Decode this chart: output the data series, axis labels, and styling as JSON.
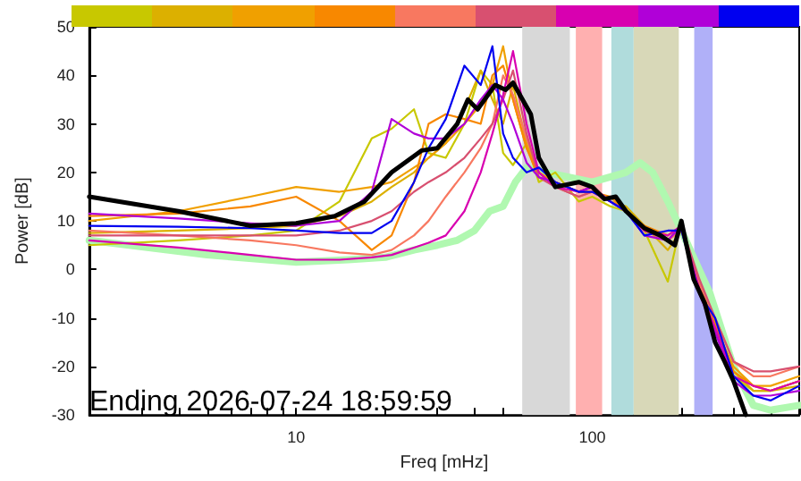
{
  "chart_data": {
    "type": "line",
    "xlabel": "Freq [mHz]",
    "ylabel": "Power [dB]",
    "log": "x",
    "grid": false,
    "marker": "none",
    "line_style": "solid",
    "xlim": [
      2,
      500
    ],
    "ylim": [
      -30,
      50
    ],
    "xticks": [
      {
        "value": 2,
        "label": null
      },
      {
        "value": 3,
        "label": null
      },
      {
        "value": 4,
        "label": null
      },
      {
        "value": 5,
        "label": null
      },
      {
        "value": 6,
        "label": null
      },
      {
        "value": 7,
        "label": null
      },
      {
        "value": 8,
        "label": null
      },
      {
        "value": 9,
        "label": null
      },
      10,
      {
        "value": 20,
        "label": null
      },
      {
        "value": 30,
        "label": null
      },
      {
        "value": 40,
        "label": null
      },
      {
        "value": 50,
        "label": null
      },
      {
        "value": 60,
        "label": null
      },
      {
        "value": 70,
        "label": null
      },
      {
        "value": 80,
        "label": null
      },
      {
        "value": 90,
        "label": null
      },
      100,
      {
        "value": 200,
        "label": null
      },
      {
        "value": 300,
        "label": null
      },
      {
        "value": 400,
        "label": null
      },
      {
        "value": 500,
        "label": null
      }
    ],
    "yticks": [
      -30,
      -20,
      -10,
      0,
      10,
      20,
      30,
      40,
      50
    ],
    "annotations": [
      "Ending 2026-07-24 18:59:59"
    ],
    "bands": [
      {
        "axis": "x",
        "from": 58,
        "to": 84,
        "color": "#d8d8d8"
      },
      {
        "axis": "x",
        "from": 88,
        "to": 108,
        "color": "#ffb0b0"
      },
      {
        "axis": "x",
        "from": 116,
        "to": 138,
        "color": "#b0dcdc"
      },
      {
        "axis": "x",
        "from": 138,
        "to": 196,
        "color": "#d8d8b8"
      },
      {
        "axis": "x",
        "from": 221,
        "to": 255,
        "color": "#b0b0f8"
      }
    ],
    "series": [
      {
        "color": "#b0f8b0",
        "x": [
          2,
          5,
          10,
          15,
          20,
          25,
          30,
          35,
          40,
          45,
          50,
          55,
          60,
          70,
          100,
          130,
          145,
          160,
          180,
          200,
          250,
          300,
          350,
          400,
          500
        ],
        "values": [
          6,
          3,
          1.5,
          2,
          2.5,
          4,
          5,
          6,
          8,
          12,
          13,
          18,
          21,
          20,
          18,
          20,
          22,
          20,
          14,
          8,
          -5,
          -20,
          -28,
          -29,
          -28
        ]
      },
      {
        "color": "#c8c800",
        "x": [
          2,
          4,
          7,
          10,
          14,
          18,
          21,
          25,
          28,
          32,
          37,
          42,
          46,
          50,
          54,
          60,
          66,
          75,
          90,
          100,
          115,
          130,
          150,
          180,
          200,
          230,
          260,
          300,
          350,
          400,
          500
        ],
        "values": [
          5,
          6,
          7,
          8,
          14,
          27,
          29,
          33,
          24,
          23,
          30,
          41,
          38,
          24,
          21.5,
          26,
          18,
          20,
          14,
          15,
          13,
          12,
          8,
          -2.5,
          10,
          -5,
          -12,
          -22,
          -25,
          -25,
          -23
        ]
      },
      {
        "color": "#dcb000",
        "x": [
          2,
          4,
          7,
          10,
          14,
          18,
          21,
          25,
          28,
          32,
          37,
          42,
          46,
          50,
          54,
          60,
          66,
          75,
          90,
          100,
          115,
          130,
          150,
          180,
          200,
          230,
          260,
          300,
          350,
          400,
          500
        ],
        "values": [
          7.5,
          8,
          8.5,
          9,
          11,
          14,
          17,
          20,
          23,
          26,
          33,
          41,
          35,
          30,
          38,
          26,
          20,
          18,
          16,
          17,
          14,
          13,
          9,
          4,
          8,
          -4,
          -12,
          -21,
          -25,
          -25,
          -24
        ]
      },
      {
        "color": "#f0a000",
        "x": [
          2,
          4,
          7,
          10,
          14,
          18,
          21,
          25,
          28,
          32,
          37,
          42,
          46,
          50,
          54,
          60,
          66,
          75,
          90,
          100,
          115,
          130,
          150,
          180,
          200,
          230,
          260,
          300,
          350,
          400,
          500
        ],
        "values": [
          10,
          12,
          15,
          17,
          16,
          17,
          18,
          21,
          23,
          26,
          30,
          34,
          38,
          46,
          35,
          25,
          20,
          18,
          16,
          17,
          14,
          12,
          8,
          6,
          9,
          -3,
          -12,
          -20,
          -24,
          -24,
          -22
        ]
      },
      {
        "color": "#f88800",
        "x": [
          2,
          4,
          7,
          10,
          14,
          18,
          21,
          25,
          28,
          32,
          37,
          42,
          46,
          50,
          54,
          60,
          66,
          75,
          90,
          100,
          115,
          130,
          150,
          180,
          200,
          230,
          260,
          300,
          350,
          400,
          500
        ],
        "values": [
          11,
          11.5,
          13,
          15,
          10,
          4,
          7,
          18,
          30,
          32,
          31,
          30,
          40,
          42,
          35,
          25,
          19,
          18,
          16,
          16,
          15,
          12,
          9,
          7,
          9,
          -3,
          -11,
          -21,
          -24,
          -25,
          -23
        ]
      },
      {
        "color": "#f87860",
        "x": [
          2,
          4,
          7,
          10,
          14,
          18,
          21,
          25,
          28,
          32,
          37,
          42,
          46,
          50,
          54,
          60,
          66,
          75,
          90,
          100,
          115,
          130,
          150,
          180,
          200,
          230,
          260,
          300,
          350,
          400,
          500
        ],
        "values": [
          8,
          7,
          6,
          5,
          3.5,
          3,
          4,
          7,
          10,
          15,
          20,
          25,
          30,
          40,
          36,
          27,
          20,
          17,
          15,
          16,
          14,
          12,
          8,
          6,
          8,
          -3,
          -10,
          -19,
          -22,
          -22,
          -20
        ]
      },
      {
        "color": "#d85070",
        "x": [
          2,
          4,
          7,
          10,
          14,
          18,
          21,
          25,
          28,
          32,
          37,
          42,
          46,
          50,
          54,
          60,
          66,
          75,
          90,
          100,
          115,
          130,
          150,
          180,
          200,
          230,
          260,
          300,
          350,
          400,
          500
        ],
        "values": [
          7,
          7,
          7,
          7,
          8,
          10,
          12,
          16,
          18,
          20,
          23,
          27,
          30,
          35,
          41,
          28,
          19,
          17,
          15,
          16,
          14,
          12,
          8,
          6,
          9,
          -2,
          -10,
          -19,
          -21,
          -21,
          -20
        ]
      },
      {
        "color": "#d800b0",
        "x": [
          2,
          4,
          7,
          10,
          14,
          18,
          21,
          25,
          28,
          32,
          37,
          42,
          46,
          50,
          54,
          60,
          66,
          75,
          90,
          100,
          115,
          130,
          150,
          180,
          200,
          230,
          260,
          300,
          350,
          400,
          500
        ],
        "values": [
          6,
          4.5,
          3,
          2,
          2,
          2.5,
          3,
          4.5,
          5.5,
          7,
          12,
          20,
          28,
          36,
          45,
          30,
          20,
          17,
          16,
          17,
          14,
          12,
          8,
          7,
          9,
          -4,
          -12,
          -22,
          -24,
          -25,
          -23
        ]
      },
      {
        "color": "#b000d8",
        "x": [
          2,
          4,
          7,
          10,
          14,
          18,
          21,
          25,
          28,
          32,
          37,
          42,
          46,
          50,
          54,
          60,
          66,
          75,
          90,
          100,
          115,
          130,
          150,
          180,
          200,
          230,
          260,
          300,
          350,
          400,
          500
        ],
        "values": [
          11.5,
          10.5,
          9.5,
          9,
          10,
          16,
          31,
          28,
          27,
          27,
          30,
          35,
          38,
          35,
          30,
          22,
          19,
          18,
          16,
          17,
          14,
          12,
          7,
          6,
          9,
          -5,
          -13,
          -23,
          -26,
          -26,
          -25
        ]
      },
      {
        "color": "#0000f0",
        "x": [
          2,
          4,
          7,
          10,
          14,
          18,
          21,
          25,
          28,
          32,
          37,
          42,
          46,
          50,
          54,
          60,
          66,
          75,
          90,
          100,
          115,
          130,
          150,
          180,
          200,
          230,
          260,
          300,
          350,
          400,
          500
        ],
        "values": [
          9,
          8.8,
          8.5,
          8,
          7.5,
          7.5,
          10,
          18,
          25,
          31,
          42,
          38,
          46,
          28,
          23,
          20,
          21,
          18,
          16,
          16,
          14,
          12,
          7,
          8,
          8,
          -5,
          -10,
          -22,
          -26,
          -27,
          -24
        ]
      },
      {
        "color": "#000000",
        "x": [
          2,
          4,
          7,
          10,
          13.5,
          17,
          21,
          26.5,
          30,
          35,
          38,
          41,
          47,
          51,
          54,
          62,
          66,
          75,
          90,
          100,
          110,
          120,
          130,
          150,
          170,
          190,
          200,
          220,
          240,
          260,
          280,
          300,
          330
        ],
        "values": [
          15,
          12,
          9,
          9.5,
          11,
          14,
          20,
          24.5,
          25,
          30,
          35,
          33,
          38,
          37,
          38.5,
          32,
          23,
          17,
          18,
          17,
          14.5,
          15,
          12,
          8.5,
          7,
          5,
          10,
          -2,
          -7,
          -15,
          -19,
          -23,
          -30
        ]
      }
    ]
  }
}
